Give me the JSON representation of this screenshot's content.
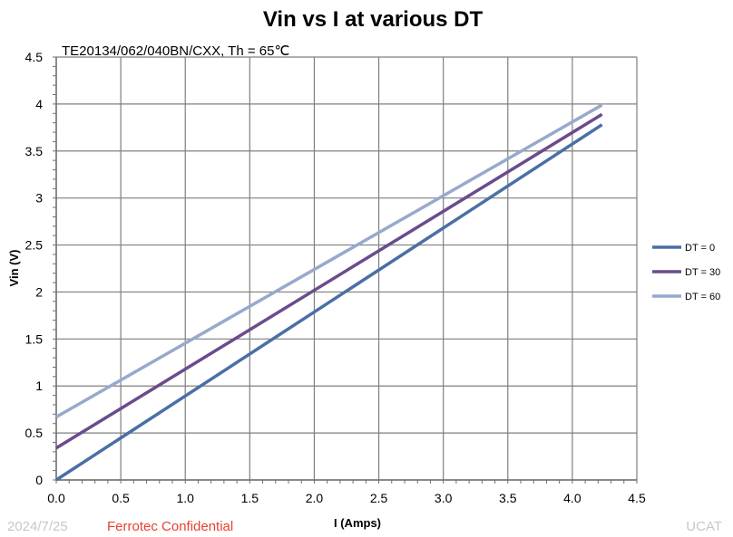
{
  "chart_data": {
    "type": "line",
    "title": "Vin vs I at various DT",
    "subtitle": "TE20134/062/040BN/CXX,  Th = 65℃",
    "xlabel": "I (Amps)",
    "ylabel": "Vin (V)",
    "xlim": [
      0,
      4.5
    ],
    "ylim": [
      0,
      4.5
    ],
    "xticks": [
      0,
      0.5,
      1,
      1.5,
      2,
      2.5,
      3,
      3.5,
      4,
      4.5
    ],
    "xtick_labels": [
      "0.0",
      "0.5",
      "1.0",
      "1.5",
      "2.0",
      "2.5",
      "3.0",
      "3.5",
      "4.0",
      "4.5"
    ],
    "yticks": [
      0,
      0.5,
      1,
      1.5,
      2,
      2.5,
      3,
      3.5,
      4,
      4.5
    ],
    "ytick_labels": [
      "0",
      "0.5",
      "1",
      "1.5",
      "2",
      "2.5",
      "3",
      "3.5",
      "4",
      "4.5"
    ],
    "grid": true,
    "legend_position": "right",
    "series": [
      {
        "name": "DT = 0",
        "color": "#4a6fa5",
        "x": [
          0,
          4.23
        ],
        "y": [
          0,
          3.78
        ]
      },
      {
        "name": "DT = 30",
        "color": "#6a4c8c",
        "x": [
          0,
          4.23
        ],
        "y": [
          0.34,
          3.89
        ]
      },
      {
        "name": "DT = 60",
        "color": "#97a9cc",
        "x": [
          0,
          4.23
        ],
        "y": [
          0.67,
          3.99
        ]
      }
    ]
  },
  "footer": {
    "date": "2024/7/25",
    "confidential": "Ferrotec Confidential",
    "right": "UCAT"
  }
}
